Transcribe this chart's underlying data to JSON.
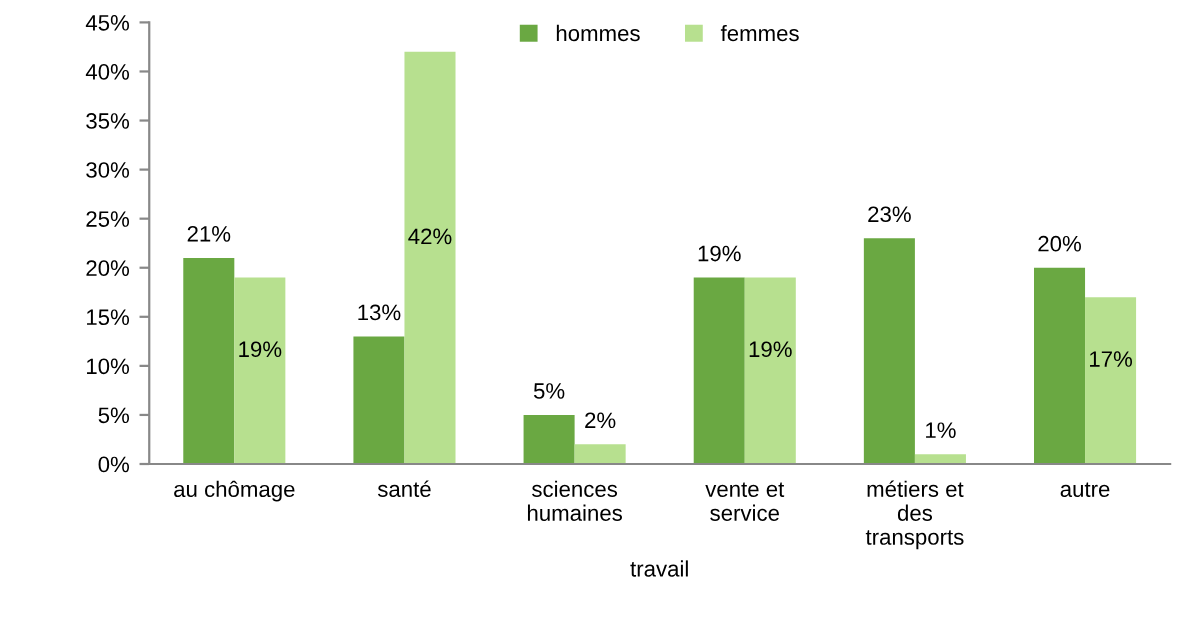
{
  "chart_data": {
    "type": "bar",
    "xlabel": "travail",
    "categories": [
      "au chômage",
      "santé",
      "sciences\nhumaines",
      "vente et\nservice",
      "métiers et\ndes\ntransports",
      "autre"
    ],
    "series": [
      {
        "name": "hommes",
        "color": "#6aa842",
        "values": [
          21,
          13,
          5,
          19,
          23,
          20
        ],
        "value_labels": [
          "21%",
          "13%",
          "5%",
          "19%",
          "23%",
          "20%"
        ]
      },
      {
        "name": "femmes",
        "color": "#b7e08f",
        "values": [
          19,
          42,
          2,
          19,
          1,
          17
        ],
        "value_labels": [
          "19%",
          "42%",
          "2%",
          "19%",
          "1%",
          "17%"
        ]
      }
    ],
    "ylim": [
      0,
      45
    ],
    "yticks": [
      {
        "value": 0,
        "label": "0%"
      },
      {
        "value": 5,
        "label": "5%"
      },
      {
        "value": 10,
        "label": "10%"
      },
      {
        "value": 15,
        "label": "15%"
      },
      {
        "value": 20,
        "label": "20%"
      },
      {
        "value": 25,
        "label": "25%"
      },
      {
        "value": 30,
        "label": "30%"
      },
      {
        "value": 35,
        "label": "35%"
      },
      {
        "value": 40,
        "label": "40%"
      },
      {
        "value": 45,
        "label": "45%"
      }
    ],
    "grid": false,
    "legend": "top"
  }
}
